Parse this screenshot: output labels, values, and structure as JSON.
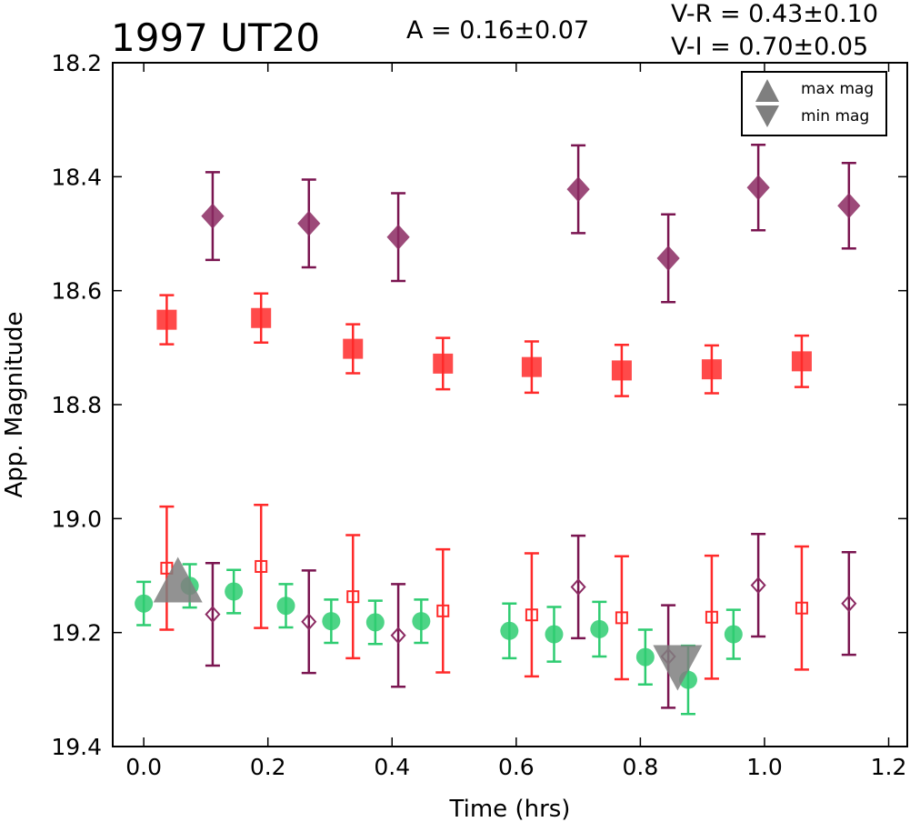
{
  "chart_data": {
    "type": "scatter",
    "title": "1997 UT20",
    "annotations": {
      "amplitude": "A  = 0.16±0.07",
      "v_minus_r": "V-R = 0.43±0.10",
      "v_minus_i": "V-I  = 0.70±0.05"
    },
    "xlabel": "Time (hrs)",
    "ylabel": "App. Magnitude",
    "xlim": [
      -0.05,
      1.23
    ],
    "ylim": [
      19.4,
      18.2
    ],
    "y_inverted": true,
    "xticks": [
      "0.0",
      "0.2",
      "0.4",
      "0.6",
      "0.8",
      "1.0",
      "1.2"
    ],
    "yticks": [
      "18.2",
      "18.4",
      "18.6",
      "18.8",
      "19.0",
      "19.2",
      "19.4"
    ],
    "grid": false,
    "legend_position": "top-right",
    "legend": [
      {
        "label": "max mag",
        "marker": "triangle-up"
      },
      {
        "label": "min mag",
        "marker": "triangle-down"
      }
    ],
    "colors": {
      "green": "#2ecc71",
      "red": "#ff2a2a",
      "purple": "#8b2a62",
      "purple_bar": "#7a1550",
      "gray": "#7f7f7f"
    },
    "series": [
      {
        "marker": "circle",
        "filled": true,
        "color": "#2ecc71",
        "points": [
          [
            0.0,
            19.149,
            0.038
          ],
          [
            0.074,
            19.118,
            0.038
          ],
          [
            0.145,
            19.128,
            0.038
          ],
          [
            0.229,
            19.153,
            0.038
          ],
          [
            0.302,
            19.18,
            0.038
          ],
          [
            0.373,
            19.182,
            0.038
          ],
          [
            0.447,
            19.18,
            0.038
          ],
          [
            0.589,
            19.197,
            0.048
          ],
          [
            0.661,
            19.203,
            0.048
          ],
          [
            0.734,
            19.194,
            0.048
          ],
          [
            0.808,
            19.243,
            0.048
          ],
          [
            0.877,
            19.283,
            0.06
          ],
          [
            0.95,
            19.203,
            0.043
          ]
        ]
      },
      {
        "marker": "square",
        "filled": true,
        "color": "#ff2a2a",
        "points": [
          [
            0.037,
            18.651,
            0.043
          ],
          [
            0.189,
            18.648,
            0.043
          ],
          [
            0.337,
            18.702,
            0.043
          ],
          [
            0.482,
            18.728,
            0.045
          ],
          [
            0.625,
            18.734,
            0.045
          ],
          [
            0.77,
            18.74,
            0.045
          ],
          [
            0.915,
            18.738,
            0.042
          ],
          [
            1.06,
            18.724,
            0.045
          ]
        ]
      },
      {
        "marker": "diamond",
        "filled": true,
        "color": "#8b2a62",
        "points": [
          [
            0.111,
            18.469,
            0.077
          ],
          [
            0.266,
            18.482,
            0.077
          ],
          [
            0.41,
            18.506,
            0.077
          ],
          [
            0.7,
            18.422,
            0.077
          ],
          [
            0.845,
            18.543,
            0.077
          ],
          [
            0.99,
            18.419,
            0.075
          ],
          [
            1.136,
            18.451,
            0.075
          ]
        ]
      },
      {
        "marker": "square",
        "filled": false,
        "color": "#ff2a2a",
        "points": [
          [
            0.037,
            19.087,
            0.108
          ],
          [
            0.189,
            19.084,
            0.108
          ],
          [
            0.337,
            19.137,
            0.108
          ],
          [
            0.482,
            19.162,
            0.108
          ],
          [
            0.625,
            19.169,
            0.108
          ],
          [
            0.77,
            19.174,
            0.108
          ],
          [
            0.915,
            19.173,
            0.108
          ],
          [
            1.06,
            19.157,
            0.108
          ]
        ]
      },
      {
        "marker": "diamond",
        "filled": false,
        "color": "#8b2a62",
        "points": [
          [
            0.111,
            19.168,
            0.09
          ],
          [
            0.266,
            19.181,
            0.09
          ],
          [
            0.41,
            19.205,
            0.09
          ],
          [
            0.7,
            19.12,
            0.09
          ],
          [
            0.845,
            19.242,
            0.09
          ],
          [
            0.99,
            19.117,
            0.09
          ],
          [
            1.136,
            19.149,
            0.09
          ]
        ]
      },
      {
        "marker": "triangle-up",
        "filled": true,
        "color": "#7f7f7f",
        "label": "max mag",
        "points": [
          [
            0.055,
            19.12,
            0
          ]
        ]
      },
      {
        "marker": "triangle-down",
        "filled": true,
        "color": "#7f7f7f",
        "label": "min mag",
        "points": [
          [
            0.86,
            19.262,
            0
          ]
        ]
      }
    ]
  }
}
